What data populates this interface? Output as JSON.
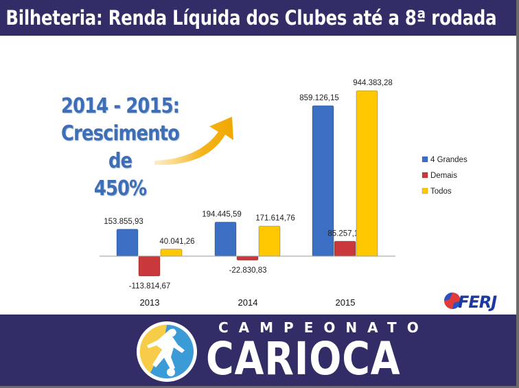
{
  "header": {
    "title": "Bilheteria: Renda Líquida dos Clubes até a 8ª rodada"
  },
  "callout": {
    "line1": "2014 - 2015:",
    "line2": "Crescimento de",
    "line3": "450%"
  },
  "footer": {
    "logo_small": "CAMPEONATO",
    "logo_big": "CARIOCA"
  },
  "ferj_logo": "FERJ",
  "chart_data": {
    "type": "bar",
    "categories": [
      "2013",
      "2014",
      "2015"
    ],
    "series": [
      {
        "name": "4 Grandes",
        "values": [
          153855.93,
          194445.59,
          859126.15
        ],
        "labels": [
          "153.855,93",
          "194.445,59",
          "859.126,15"
        ],
        "color": "#3a6fc4"
      },
      {
        "name": "Demais",
        "values": [
          -113814.67,
          -22830.83,
          85257.13
        ],
        "labels": [
          "-113.814,67",
          "-22.830,83",
          "85.257,13"
        ],
        "color": "#c9383a"
      },
      {
        "name": "Todos",
        "values": [
          40041.26,
          171614.76,
          944383.28
        ],
        "labels": [
          "40.041,26",
          "171.614,76",
          "944.383,28"
        ],
        "color": "#ffc800"
      }
    ],
    "legend_position": "right",
    "grid": false
  }
}
